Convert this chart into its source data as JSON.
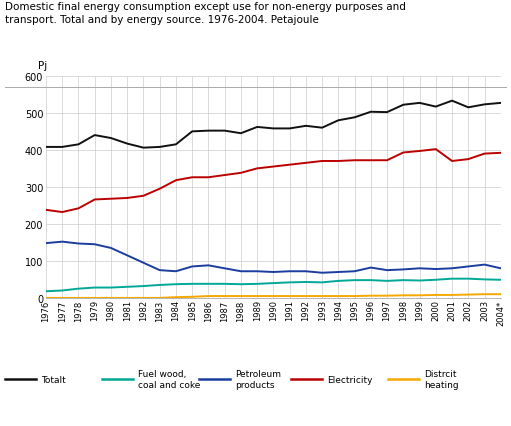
{
  "title_line1": "Domestic final energy consumption except use for non-energy purposes and",
  "title_line2": "transport. Total and by energy source. 1976-2004. Petajoule",
  "ylabel": "Pj",
  "year_labels": [
    "1976",
    "1977",
    "1978",
    "1979",
    "1980",
    "1981",
    "1982",
    "1983",
    "1984",
    "1985",
    "1986",
    "1987",
    "1988",
    "1989",
    "1990",
    "1991",
    "1992",
    "1993",
    "1994",
    "1995",
    "1996",
    "1997",
    "1998",
    "1999",
    "2000",
    "2001",
    "2002",
    "2003",
    "2004*"
  ],
  "totalt": [
    408,
    408,
    415,
    440,
    432,
    417,
    406,
    408,
    415,
    450,
    452,
    452,
    445,
    462,
    458,
    458,
    465,
    460,
    480,
    488,
    503,
    502,
    522,
    527,
    517,
    533,
    515,
    523,
    527
  ],
  "fuel_wood": [
    18,
    20,
    25,
    28,
    28,
    30,
    32,
    35,
    37,
    38,
    38,
    38,
    37,
    38,
    40,
    42,
    43,
    42,
    46,
    48,
    48,
    46,
    48,
    47,
    49,
    52,
    52,
    50,
    49
  ],
  "petroleum": [
    148,
    152,
    147,
    145,
    135,
    115,
    95,
    75,
    72,
    85,
    88,
    80,
    72,
    72,
    70,
    72,
    72,
    68,
    70,
    72,
    82,
    75,
    77,
    80,
    78,
    80,
    85,
    90,
    80
  ],
  "electricity": [
    238,
    232,
    242,
    266,
    268,
    270,
    276,
    295,
    318,
    326,
    326,
    332,
    338,
    350,
    355,
    360,
    365,
    370,
    370,
    372,
    372,
    372,
    393,
    397,
    402,
    370,
    375,
    390,
    392
  ],
  "district": [
    0,
    0,
    0,
    0,
    0,
    0,
    0,
    0,
    2,
    3,
    5,
    5,
    5,
    5,
    5,
    5,
    5,
    5,
    5,
    5,
    6,
    6,
    7,
    7,
    8,
    8,
    9,
    10,
    10
  ],
  "colors": {
    "totalt": "#111111",
    "fuel_wood": "#00a898",
    "petroleum": "#1a3d9e",
    "electricity": "#bb0000",
    "district": "#f5a800"
  },
  "legend_labels": {
    "totalt": "Totalt",
    "fuel_wood": "Fuel wood,\ncoal and coke",
    "petroleum": "Petroleum\nproducts",
    "electricity": "Electricity",
    "district": "Distrcit\nheating"
  },
  "ylim": [
    0,
    600
  ],
  "yticks": [
    0,
    100,
    200,
    300,
    400,
    500,
    600
  ],
  "background_color": "#ffffff",
  "grid_color": "#cccccc"
}
